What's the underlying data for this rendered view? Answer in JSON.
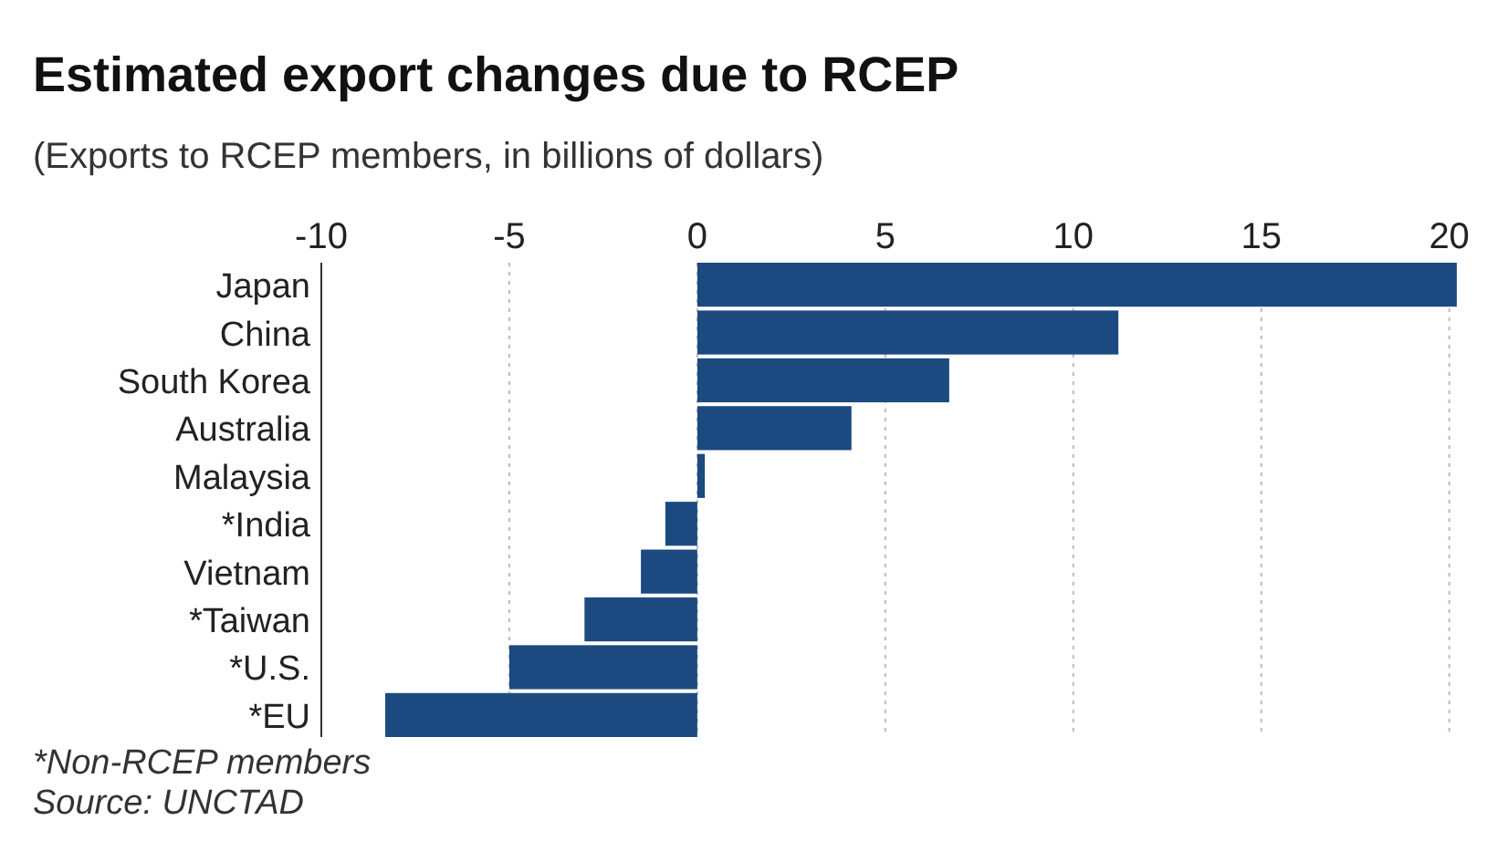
{
  "chart_data": {
    "type": "bar",
    "orientation": "horizontal",
    "title": "Estimated export changes due to RCEP",
    "subtitle": "(Exports to RCEP members, in billions of dollars)",
    "categories": [
      "Japan",
      "China",
      "South Korea",
      "Australia",
      "Malaysia",
      "*India",
      "Vietnam",
      "*Taiwan",
      "*U.S.",
      "*EU"
    ],
    "values": [
      20.2,
      11.2,
      6.7,
      4.1,
      0.2,
      -0.85,
      -1.5,
      -3.0,
      -5.0,
      -8.3
    ],
    "color": "#1c4a80",
    "xlim": [
      -10,
      20.3
    ],
    "xticks": [
      -10,
      -5,
      0,
      5,
      10,
      15,
      20
    ],
    "grid": "x",
    "annotations": [
      "*Non-RCEP members",
      "Source: UNCTAD"
    ]
  }
}
